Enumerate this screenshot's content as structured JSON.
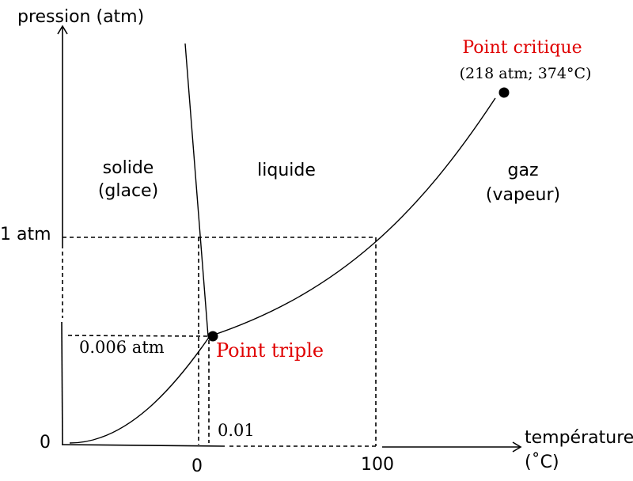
{
  "axes": {
    "y_label": "pression (atm)",
    "x_label_line1": "température",
    "x_label_line2": "(˚C)"
  },
  "ticks": {
    "y_one_atm": "1 atm",
    "y_zero": "0",
    "x_zero": "0",
    "x_hundred": "100",
    "triple_pressure": "0.006 atm",
    "triple_temperature": "0.01"
  },
  "regions": {
    "solid_line1": "solide",
    "solid_line2": "(glace)",
    "liquid": "liquide",
    "gas_line1": "gaz",
    "gas_line2": "(vapeur)"
  },
  "points": {
    "critical_label": "Point critique",
    "critical_values": "(218 atm; 374°C)",
    "triple_label": "Point triple"
  },
  "colors": {
    "highlight": "#e00000",
    "ink": "#000000"
  }
}
